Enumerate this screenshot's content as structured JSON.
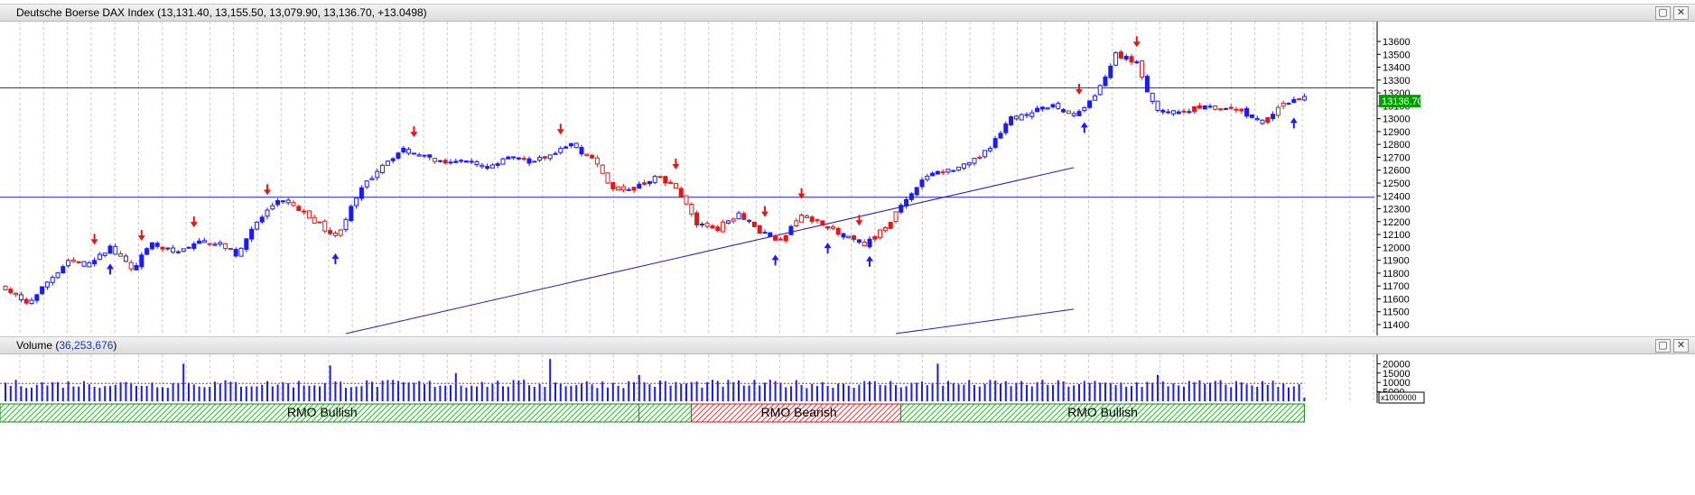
{
  "price_pane": {
    "title": "Deutsche Boerse DAX Index (13,131.40, 13,155.50, 13,079.90, 13,136.70, +13.0498)",
    "last_price_label": "13136.70",
    "max_icon": "maximize-icon",
    "close_icon": "close-icon"
  },
  "volume_pane": {
    "title_prefix": "Volume (",
    "title_value": "36,253,676",
    "title_suffix": ")",
    "scale_unit": "x1000000"
  },
  "colors": {
    "up": "#1a1aff",
    "down": "#e81515",
    "line": "#2020c8",
    "grid": "#c8c8c8",
    "bg": "#ffffff",
    "ma": "#d62020"
  },
  "chart_data": [
    {
      "type": "candlestick",
      "ylim": [
        11330,
        13740
      ],
      "yticks": [
        11400,
        11500,
        11600,
        11700,
        11800,
        11900,
        12000,
        12100,
        12200,
        12300,
        12400,
        12500,
        12600,
        12700,
        12800,
        12900,
        13000,
        13100,
        13200,
        13300,
        13400,
        13500,
        13600
      ],
      "horizontal_lines": [
        13240,
        12390
      ],
      "trendlines": [
        {
          "from": {
            "bar": 65,
            "value": 11330
          },
          "to": {
            "bar": 204,
            "value": 12620
          }
        },
        {
          "from": {
            "bar": 170,
            "value": 11330
          },
          "to": {
            "bar": 204,
            "value": 11520
          }
        }
      ],
      "anchors": [
        [
          0,
          11690
        ],
        [
          4,
          11550
        ],
        [
          8,
          11730
        ],
        [
          12,
          11900
        ],
        [
          16,
          11860
        ],
        [
          20,
          12000
        ],
        [
          24,
          11830
        ],
        [
          28,
          12020
        ],
        [
          32,
          11960
        ],
        [
          36,
          12030
        ],
        [
          40,
          12040
        ],
        [
          44,
          11950
        ],
        [
          48,
          12190
        ],
        [
          52,
          12370
        ],
        [
          56,
          12290
        ],
        [
          60,
          12180
        ],
        [
          63,
          12080
        ],
        [
          68,
          12450
        ],
        [
          72,
          12650
        ],
        [
          76,
          12760
        ],
        [
          80,
          12700
        ],
        [
          84,
          12640
        ],
        [
          88,
          12680
        ],
        [
          92,
          12610
        ],
        [
          96,
          12720
        ],
        [
          100,
          12670
        ],
        [
          104,
          12700
        ],
        [
          108,
          12800
        ],
        [
          112,
          12690
        ],
        [
          116,
          12450
        ],
        [
          120,
          12460
        ],
        [
          124,
          12550
        ],
        [
          128,
          12480
        ],
        [
          132,
          12180
        ],
        [
          136,
          12150
        ],
        [
          140,
          12270
        ],
        [
          144,
          12130
        ],
        [
          148,
          12050
        ],
        [
          152,
          12250
        ],
        [
          156,
          12190
        ],
        [
          160,
          12080
        ],
        [
          164,
          12030
        ],
        [
          168,
          12150
        ],
        [
          172,
          12390
        ],
        [
          176,
          12560
        ],
        [
          180,
          12600
        ],
        [
          184,
          12640
        ],
        [
          188,
          12770
        ],
        [
          192,
          13000
        ],
        [
          196,
          13050
        ],
        [
          200,
          13100
        ],
        [
          204,
          13020
        ],
        [
          208,
          13180
        ],
        [
          212,
          13500
        ],
        [
          216,
          13430
        ],
        [
          218,
          13200
        ],
        [
          220,
          13060
        ],
        [
          224,
          13050
        ],
        [
          228,
          13090
        ],
        [
          232,
          13070
        ],
        [
          236,
          13070
        ],
        [
          240,
          12950
        ],
        [
          244,
          13110
        ],
        [
          248,
          13160
        ]
      ],
      "arrows": [
        {
          "bar": 17,
          "dir": "down"
        },
        {
          "bar": 20,
          "dir": "up"
        },
        {
          "bar": 26,
          "dir": "down"
        },
        {
          "bar": 36,
          "dir": "down"
        },
        {
          "bar": 50,
          "dir": "down"
        },
        {
          "bar": 63,
          "dir": "up"
        },
        {
          "bar": 78,
          "dir": "down"
        },
        {
          "bar": 106,
          "dir": "down"
        },
        {
          "bar": 128,
          "dir": "down"
        },
        {
          "bar": 145,
          "dir": "down"
        },
        {
          "bar": 147,
          "dir": "up"
        },
        {
          "bar": 152,
          "dir": "down"
        },
        {
          "bar": 157,
          "dir": "up"
        },
        {
          "bar": 163,
          "dir": "down"
        },
        {
          "bar": 165,
          "dir": "up"
        },
        {
          "bar": 205,
          "dir": "down"
        },
        {
          "bar": 206,
          "dir": "up"
        },
        {
          "bar": 216,
          "dir": "down"
        },
        {
          "bar": 246,
          "dir": "up"
        }
      ]
    },
    {
      "type": "bar",
      "series_name": "Volume",
      "ylim": [
        0,
        24000
      ],
      "yticks": [
        5000,
        10000,
        15000,
        20000
      ],
      "moving_average": 9500,
      "spikes": [
        [
          34,
          20000
        ],
        [
          62,
          19000
        ],
        [
          104,
          22500
        ],
        [
          178,
          20000
        ],
        [
          86,
          15000
        ],
        [
          121,
          14000
        ],
        [
          220,
          14000
        ]
      ],
      "zones": [
        {
          "label": "RMO Bullish",
          "from_bar": 0,
          "to_bar": 122,
          "kind": "bullish"
        },
        {
          "label": "",
          "from_bar": 122,
          "to_bar": 132,
          "kind": "bullish"
        },
        {
          "label": "RMO Bearish",
          "from_bar": 132,
          "to_bar": 172,
          "kind": "bearish"
        },
        {
          "label": "RMO Bullish",
          "from_bar": 172,
          "to_bar": 248,
          "kind": "bullish"
        }
      ]
    }
  ]
}
